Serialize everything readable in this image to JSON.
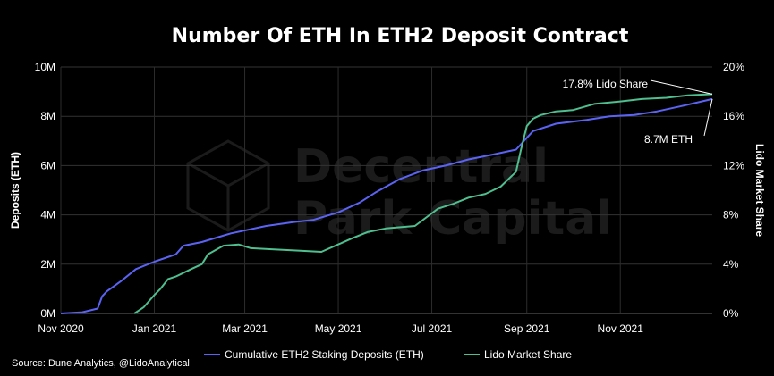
{
  "chart_data": {
    "type": "line",
    "title": "Number Of ETH In ETH2 Deposit Contract",
    "ylabel_left": "Deposits (ETH)",
    "ylabel_right": "Lido Market Share",
    "ylim_left": [
      0,
      10000000
    ],
    "ylim_right": [
      0,
      20
    ],
    "y_ticks_left": [
      "0M",
      "2M",
      "4M",
      "6M",
      "8M",
      "10M"
    ],
    "y_ticks_right": [
      "0%",
      "4%",
      "8%",
      "12%",
      "16%",
      "20%"
    ],
    "x_ticks": [
      "Nov 2020",
      "Jan 2021",
      "Mar 2021",
      "May 2021",
      "Jul 2021",
      "Sep 2021",
      "Nov 2021"
    ],
    "x_tick_dates": [
      "2020-11-01",
      "2021-01-01",
      "2021-03-01",
      "2021-05-01",
      "2021-07-01",
      "2021-09-01",
      "2021-11-01"
    ],
    "x_range": [
      "2020-11-01",
      "2021-12-31"
    ],
    "grid": true,
    "legend_position": "bottom",
    "series": [
      {
        "name": "Cumulative ETH2 Staking Deposits (ETH)",
        "color": "#5b63f5",
        "axis": "left",
        "x": [
          "2020-11-01",
          "2020-11-15",
          "2020-11-25",
          "2020-11-28",
          "2020-12-01",
          "2020-12-10",
          "2020-12-20",
          "2021-01-01",
          "2021-01-15",
          "2021-01-20",
          "2021-02-01",
          "2021-02-20",
          "2021-03-15",
          "2021-04-01",
          "2021-04-15",
          "2021-05-01",
          "2021-05-15",
          "2021-05-25",
          "2021-06-10",
          "2021-06-25",
          "2021-07-10",
          "2021-07-25",
          "2021-08-10",
          "2021-08-25",
          "2021-09-05",
          "2021-09-20",
          "2021-10-10",
          "2021-10-25",
          "2021-11-10",
          "2021-11-25",
          "2021-12-10",
          "2021-12-31"
        ],
        "values": [
          0,
          50000,
          200000,
          700000,
          900000,
          1300000,
          1800000,
          2100000,
          2400000,
          2750000,
          2900000,
          3250000,
          3550000,
          3700000,
          3800000,
          4100000,
          4500000,
          4900000,
          5450000,
          5800000,
          6000000,
          6250000,
          6450000,
          6650000,
          7400000,
          7700000,
          7850000,
          8000000,
          8050000,
          8200000,
          8400000,
          8700000
        ]
      },
      {
        "name": "Lido Market Share",
        "color": "#4fbf90",
        "axis": "right",
        "x": [
          "2020-12-19",
          "2020-12-25",
          "2021-01-01",
          "2021-01-05",
          "2021-01-10",
          "2021-01-15",
          "2021-01-25",
          "2021-02-01",
          "2021-02-05",
          "2021-02-15",
          "2021-02-25",
          "2021-03-05",
          "2021-03-20",
          "2021-04-05",
          "2021-04-20",
          "2021-05-01",
          "2021-05-10",
          "2021-05-20",
          "2021-06-01",
          "2021-06-20",
          "2021-07-05",
          "2021-07-15",
          "2021-07-25",
          "2021-08-05",
          "2021-08-15",
          "2021-08-25",
          "2021-08-28",
          "2021-09-01",
          "2021-09-05",
          "2021-09-10",
          "2021-09-20",
          "2021-10-01",
          "2021-10-15",
          "2021-11-01",
          "2021-11-15",
          "2021-12-01",
          "2021-12-15",
          "2021-12-31"
        ],
        "values": [
          0,
          0.5,
          1.5,
          2.0,
          2.8,
          3.0,
          3.6,
          4.0,
          4.8,
          5.5,
          5.6,
          5.3,
          5.2,
          5.1,
          5.0,
          5.6,
          6.1,
          6.6,
          6.9,
          7.1,
          8.5,
          8.9,
          9.4,
          9.7,
          10.3,
          11.5,
          13.2,
          15.2,
          15.8,
          16.1,
          16.4,
          16.5,
          17.0,
          17.2,
          17.4,
          17.5,
          17.7,
          17.8
        ]
      }
    ],
    "annotations": [
      {
        "text": "17.8% Lido Share",
        "series": "Lido Market Share"
      },
      {
        "text": "8.7M ETH",
        "series": "Cumulative ETH2 Staking Deposits (ETH)"
      }
    ]
  },
  "source": "Source: Dune Analytics, @LidoAnalytical",
  "watermark": {
    "line1": "Decentral",
    "line2": "Park Capital"
  }
}
